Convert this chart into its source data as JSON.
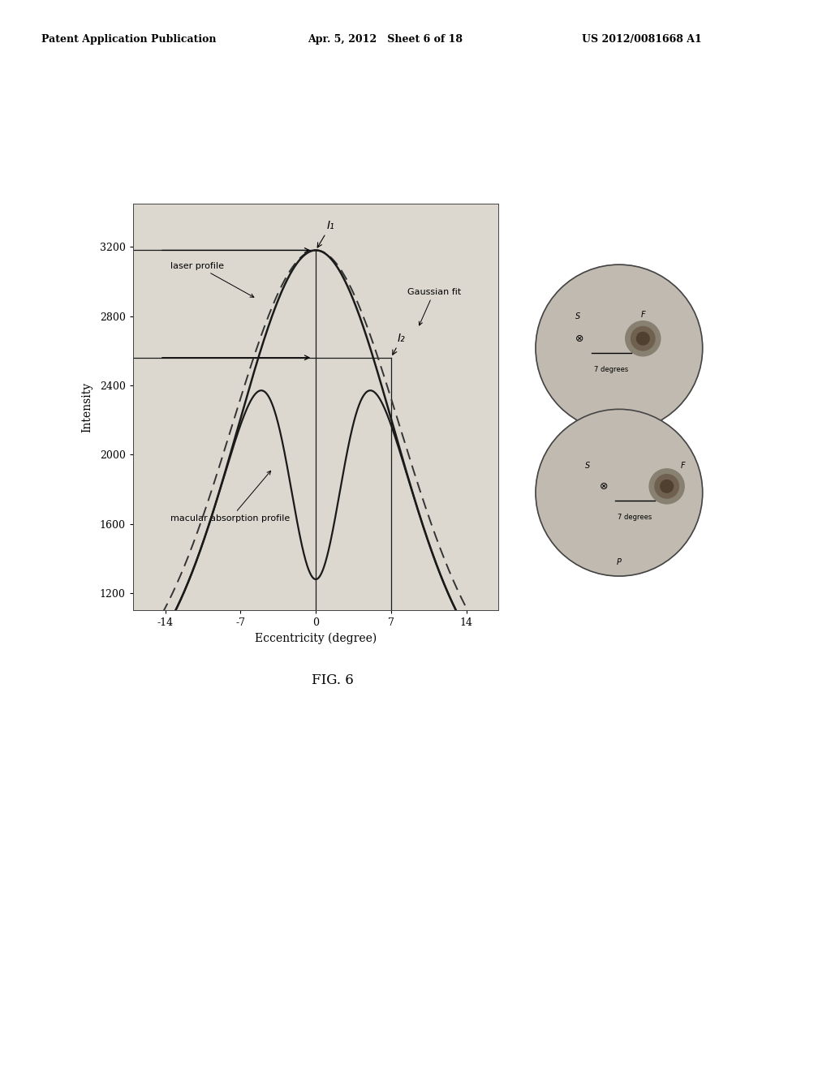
{
  "header_left": "Patent Application Publication",
  "header_mid": "Apr. 5, 2012   Sheet 6 of 18",
  "header_right": "US 2012/0081668 A1",
  "fig_caption": "FIG. 6",
  "xlabel": "Eccentricity (degree)",
  "ylabel": "Intensity",
  "xlim": [
    -17,
    17
  ],
  "ylim": [
    1100,
    3450
  ],
  "xticks": [
    -14,
    -7,
    0,
    7,
    14
  ],
  "yticks": [
    1200,
    1600,
    2000,
    2400,
    2800,
    3200
  ],
  "I1_label": "I₁",
  "I2_label": "I₂",
  "I1_x": 0.0,
  "I1_y": 3180,
  "I2_x": 7.0,
  "I2_y": 2560,
  "horizontal_line_y": 2560,
  "plot_bg": "#dcd8d0",
  "sigma_gauss": 7.8,
  "gauss_base": 600,
  "gauss_peak": 3180,
  "sigma_laser": 7.2,
  "laser_base": 600,
  "laser_peak": 3180,
  "mac_sigma": 2.5,
  "mac_depth": 1900
}
